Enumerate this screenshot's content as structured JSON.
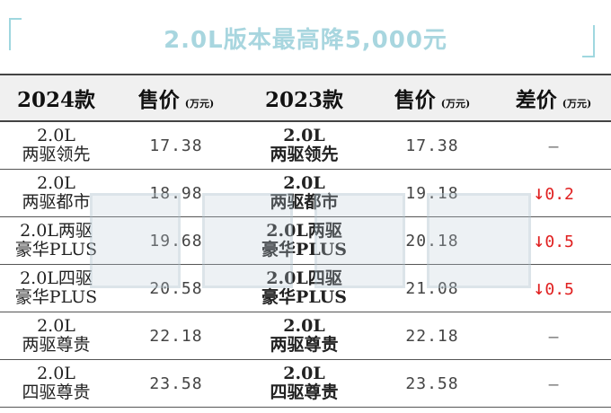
{
  "title": "2.0L版本最高降5,000元",
  "table": {
    "headers": [
      {
        "label": "2024款",
        "unit": ""
      },
      {
        "label": "售价",
        "unit": "(万元)"
      },
      {
        "label": "2023款",
        "unit": ""
      },
      {
        "label": "售价",
        "unit": "(万元)"
      },
      {
        "label": "差价",
        "unit": "(万元)"
      }
    ],
    "rows": [
      {
        "trim2024": {
          "l1": "2.0L",
          "l2": "两驱领先"
        },
        "price2024": "17.38",
        "trim2023": {
          "l1": "2.0L",
          "l2": "两驱领先"
        },
        "price2023": "17.38",
        "diff": "–",
        "diff_arrow": ""
      },
      {
        "trim2024": {
          "l1": "2.0L",
          "l2": "两驱都市"
        },
        "price2024": "18.98",
        "trim2023": {
          "l1": "2.0L",
          "l2": "两驱都市"
        },
        "price2023": "19.18",
        "diff": "0.2",
        "diff_arrow": "↓"
      },
      {
        "trim2024": {
          "l1": "2.0L两驱",
          "l2": "豪华PLUS"
        },
        "price2024": "19.68",
        "trim2023": {
          "l1": "2.0L两驱",
          "l2": "豪华PLUS"
        },
        "price2023": "20.18",
        "diff": "0.5",
        "diff_arrow": "↓"
      },
      {
        "trim2024": {
          "l1": "2.0L四驱",
          "l2": "豪华PLUS"
        },
        "price2024": "20.58",
        "trim2023": {
          "l1": "2.0L四驱",
          "l2": "豪华PLUS"
        },
        "price2023": "21.08",
        "diff": "0.5",
        "diff_arrow": "↓"
      },
      {
        "trim2024": {
          "l1": "2.0L",
          "l2": "两驱尊贵"
        },
        "price2024": "22.18",
        "trim2023": {
          "l1": "2.0L",
          "l2": "两驱尊贵"
        },
        "price2023": "22.18",
        "diff": "–",
        "diff_arrow": ""
      },
      {
        "trim2024": {
          "l1": "2.0L",
          "l2": "四驱尊贵"
        },
        "price2024": "23.58",
        "trim2023": {
          "l1": "2.0L",
          "l2": "四驱尊贵"
        },
        "price2023": "23.58",
        "diff": "–",
        "diff_arrow": ""
      }
    ]
  },
  "colors": {
    "accent": "#a8d6df",
    "price_drop": "#e01f1f"
  }
}
